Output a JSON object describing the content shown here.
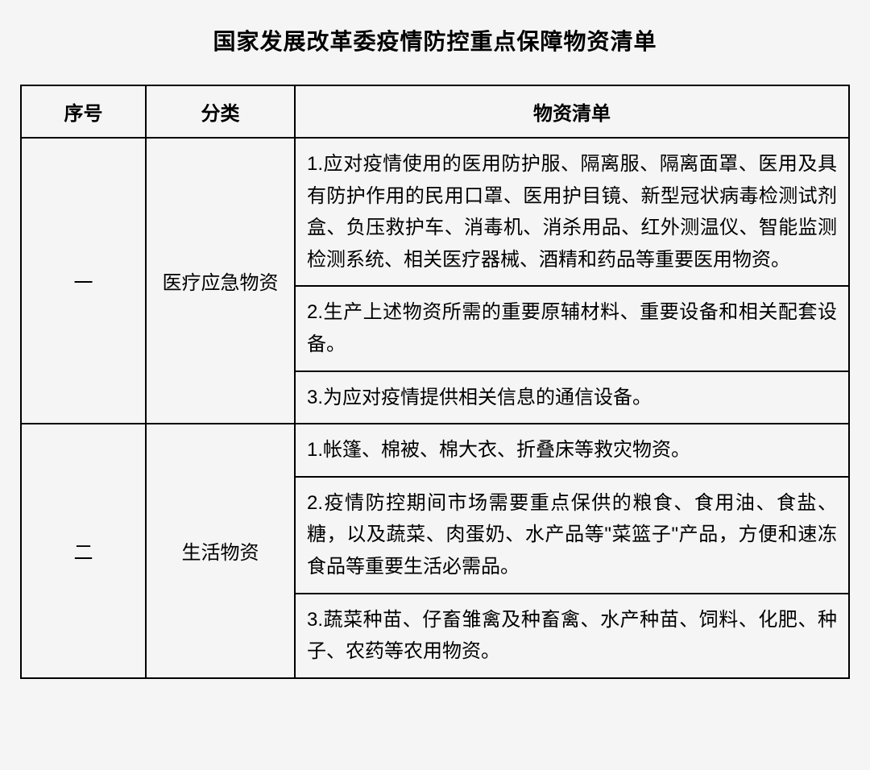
{
  "title": "国家发展改革委疫情防控重点保障物资清单",
  "headers": {
    "index": "序号",
    "category": "分类",
    "items": "物资清单"
  },
  "rows": [
    {
      "index": "一",
      "category": "医疗应急物资",
      "items": [
        "1.应对疫情使用的医用防护服、隔离服、隔离面罩、医用及具有防护作用的民用口罩、医用护目镜、新型冠状病毒检测试剂盒、负压救护车、消毒机、消杀用品、红外测温仪、智能监测检测系统、相关医疗器械、酒精和药品等重要医用物资。",
        "2.生产上述物资所需的重要原辅材料、重要设备和相关配套设备。",
        "3.为应对疫情提供相关信息的通信设备。"
      ]
    },
    {
      "index": "二",
      "category": "生活物资",
      "items": [
        "1.帐篷、棉被、棉大衣、折叠床等救灾物资。",
        "2.疫情防控期间市场需要重点保供的粮食、食用油、食盐、糖，以及蔬菜、肉蛋奶、水产品等\"菜篮子\"产品，方便和速冻食品等重要生活必需品。",
        "3.蔬菜种苗、仔畜雏禽及种畜禽、水产种苗、饲料、化肥、种子、农药等农用物资。"
      ]
    }
  ],
  "styling": {
    "background_color": "#f5f5f5",
    "border_color": "#000000",
    "text_color": "#000000",
    "title_fontsize": 28,
    "cell_fontsize": 24,
    "border_width": 2
  }
}
